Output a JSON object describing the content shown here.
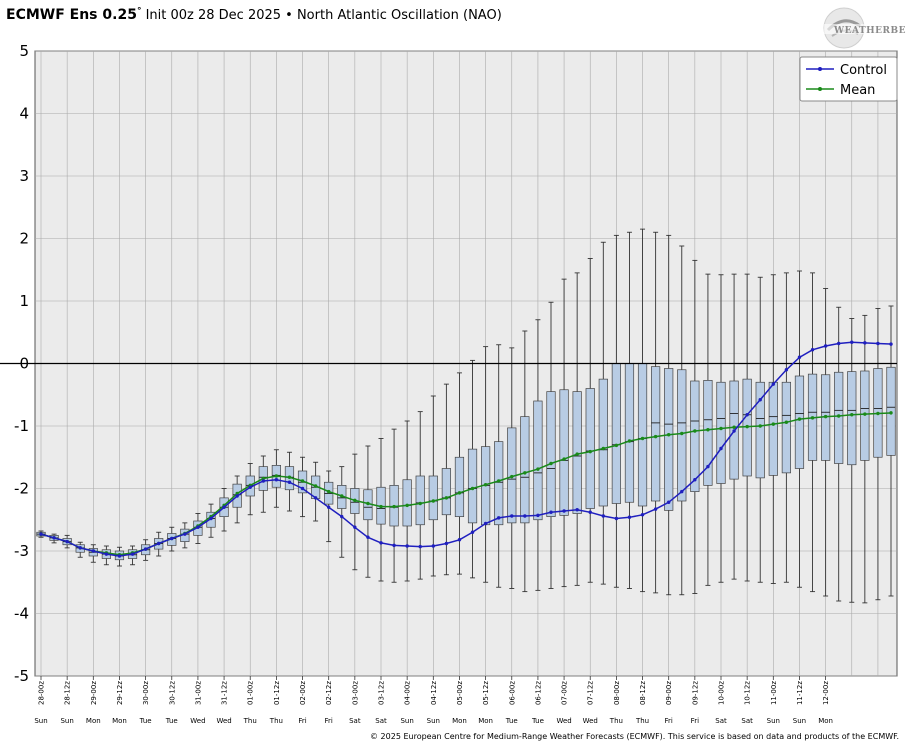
{
  "header": {
    "title_bold": "ECMWF Ens 0.25",
    "degree": "°",
    "subtitle": " Init 00z 28 Dec 2025 • North Atlantic Oscillation (NAO)"
  },
  "logo": {
    "text_main": "WEATHERBELL"
  },
  "footer": {
    "text": "© 2025 European Centre for Medium-Range Weather Forecasts (ECMWF). This service is based on data and products of the ECMWF."
  },
  "legend": {
    "control": "Control",
    "mean": "Mean",
    "position": "top-right"
  },
  "colors": {
    "control": "#1f1fbf",
    "mean": "#1a8a1a",
    "box_fill": "#b8cce4",
    "plot_bg": "#ebebeb",
    "grid": "#aaaaaa"
  },
  "chart_data": {
    "type": "box",
    "ylim": [
      -5,
      5
    ],
    "yticks": [
      "5",
      "4",
      "3",
      "2",
      "1",
      "0",
      "-1",
      "-2",
      "-3",
      "-4",
      "-5"
    ],
    "grid": true,
    "x_interval_hours": 6,
    "x_tick_labels": [
      "28-00z",
      "28-12z",
      "29-00z",
      "29-12z",
      "30-00z",
      "30-12z",
      "31-00z",
      "31-12z",
      "01-00z",
      "01-12z",
      "02-00z",
      "02-12z",
      "03-00z",
      "03-12z",
      "04-00z",
      "04-12z",
      "05-00z",
      "05-12z",
      "06-00z",
      "06-12z",
      "07-00z",
      "07-12z",
      "08-00z",
      "08-12z",
      "09-00z",
      "09-12z",
      "10-00z",
      "10-12z",
      "11-00z",
      "11-12z",
      "12-00z"
    ],
    "x_day_labels": [
      "Sun",
      "Sun",
      "Mon",
      "Mon",
      "Tue",
      "Tue",
      "Wed",
      "Wed",
      "Thu",
      "Thu",
      "Fri",
      "Fri",
      "Sat",
      "Sat",
      "Sun",
      "Sun",
      "Mon",
      "Mon",
      "Tue",
      "Tue",
      "Wed",
      "Wed",
      "Thu",
      "Thu",
      "Fri",
      "Fri",
      "Sat",
      "Sat",
      "Sun",
      "Sun",
      "Mon"
    ],
    "series": [
      {
        "name": "Control",
        "values": [
          -2.73,
          -2.79,
          -2.85,
          -2.95,
          -3.0,
          -3.05,
          -3.08,
          -3.05,
          -2.97,
          -2.88,
          -2.8,
          -2.73,
          -2.62,
          -2.48,
          -2.3,
          -2.12,
          -1.98,
          -1.88,
          -1.86,
          -1.9,
          -2.0,
          -2.15,
          -2.3,
          -2.45,
          -2.62,
          -2.78,
          -2.87,
          -2.91,
          -2.92,
          -2.93,
          -2.92,
          -2.88,
          -2.82,
          -2.7,
          -2.56,
          -2.47,
          -2.44,
          -2.44,
          -2.43,
          -2.38,
          -2.36,
          -2.34,
          -2.38,
          -2.44,
          -2.48,
          -2.46,
          -2.42,
          -2.33,
          -2.22,
          -2.05,
          -1.86,
          -1.65,
          -1.36,
          -1.08,
          -0.82,
          -0.58,
          -0.33,
          -0.1,
          0.1,
          0.22,
          0.28,
          0.32,
          0.34,
          0.33,
          0.32,
          0.31
        ]
      },
      {
        "name": "Mean",
        "values": [
          -2.73,
          -2.79,
          -2.85,
          -2.95,
          -3.0,
          -3.03,
          -3.06,
          -3.03,
          -2.97,
          -2.88,
          -2.8,
          -2.72,
          -2.6,
          -2.45,
          -2.27,
          -2.08,
          -1.95,
          -1.84,
          -1.8,
          -1.82,
          -1.88,
          -1.96,
          -2.05,
          -2.12,
          -2.19,
          -2.24,
          -2.29,
          -2.29,
          -2.27,
          -2.24,
          -2.2,
          -2.15,
          -2.07,
          -2.0,
          -1.94,
          -1.88,
          -1.81,
          -1.75,
          -1.69,
          -1.6,
          -1.53,
          -1.45,
          -1.41,
          -1.36,
          -1.31,
          -1.24,
          -1.2,
          -1.17,
          -1.14,
          -1.12,
          -1.08,
          -1.06,
          -1.04,
          -1.02,
          -1.01,
          -1.0,
          -0.97,
          -0.94,
          -0.89,
          -0.87,
          -0.85,
          -0.84,
          -0.82,
          -0.81,
          -0.8,
          -0.79
        ]
      }
    ],
    "box_q1": [
      -2.76,
      -2.83,
      -2.9,
      -3.02,
      -3.08,
      -3.12,
      -3.14,
      -3.12,
      -3.06,
      -2.97,
      -2.91,
      -2.85,
      -2.75,
      -2.62,
      -2.45,
      -2.3,
      -2.12,
      -2.03,
      -1.98,
      -2.02,
      -2.07,
      -2.16,
      -2.25,
      -2.32,
      -2.4,
      -2.5,
      -2.57,
      -2.6,
      -2.6,
      -2.58,
      -2.5,
      -2.42,
      -2.45,
      -2.55,
      -2.58,
      -2.58,
      -2.55,
      -2.55,
      -2.5,
      -2.45,
      -2.43,
      -2.4,
      -2.32,
      -2.28,
      -2.24,
      -2.22,
      -2.28,
      -2.2,
      -2.35,
      -2.2,
      -2.05,
      -1.95,
      -1.92,
      -1.85,
      -1.8,
      -1.83,
      -1.79,
      -1.75,
      -1.68,
      -1.55,
      -1.55,
      -1.6,
      -1.62,
      -1.55,
      -1.5,
      -1.47
    ],
    "box_q3": [
      -2.7,
      -2.75,
      -2.8,
      -2.9,
      -2.96,
      -2.98,
      -3.0,
      -2.98,
      -2.9,
      -2.8,
      -2.72,
      -2.65,
      -2.52,
      -2.38,
      -2.15,
      -1.93,
      -1.8,
      -1.65,
      -1.63,
      -1.65,
      -1.72,
      -1.8,
      -1.9,
      -1.95,
      -2.0,
      -2.02,
      -1.98,
      -1.95,
      -1.86,
      -1.8,
      -1.8,
      -1.68,
      -1.5,
      -1.37,
      -1.33,
      -1.25,
      -1.03,
      -0.85,
      -0.6,
      -0.45,
      -0.42,
      -0.45,
      -0.4,
      -0.25,
      0.0,
      0.0,
      0.0,
      -0.05,
      -0.08,
      -0.1,
      -0.28,
      -0.27,
      -0.3,
      -0.28,
      -0.25,
      -0.3,
      -0.3,
      -0.3,
      -0.2,
      -0.17,
      -0.18,
      -0.14,
      -0.13,
      -0.12,
      -0.08,
      -0.06
    ],
    "box_median": [
      -2.73,
      -2.79,
      -2.85,
      -2.95,
      -3.02,
      -3.05,
      -3.08,
      -3.06,
      -2.98,
      -2.88,
      -2.8,
      -2.73,
      -2.62,
      -2.48,
      -2.3,
      -2.1,
      -1.95,
      -1.82,
      -1.79,
      -1.82,
      -1.9,
      -1.98,
      -2.08,
      -2.15,
      -2.22,
      -2.3,
      -2.32,
      -2.3,
      -2.27,
      -2.23,
      -2.2,
      -2.15,
      -2.07,
      -2.0,
      -1.95,
      -1.9,
      -1.85,
      -1.82,
      -1.75,
      -1.68,
      -1.55,
      -1.48,
      -1.4,
      -1.38,
      -1.3,
      -1.25,
      -1.2,
      -0.95,
      -0.97,
      -0.95,
      -0.92,
      -0.9,
      -0.88,
      -0.8,
      -0.82,
      -0.88,
      -0.85,
      -0.83,
      -0.8,
      -0.78,
      -0.78,
      -0.75,
      -0.75,
      -0.72,
      -0.72,
      -0.7
    ],
    "box_min": [
      -2.78,
      -2.87,
      -2.95,
      -3.1,
      -3.18,
      -3.22,
      -3.24,
      -3.22,
      -3.15,
      -3.08,
      -3.0,
      -2.95,
      -2.88,
      -2.78,
      -2.68,
      -2.55,
      -2.42,
      -2.38,
      -2.3,
      -2.36,
      -2.45,
      -2.52,
      -2.85,
      -3.1,
      -3.3,
      -3.42,
      -3.48,
      -3.5,
      -3.48,
      -3.45,
      -3.4,
      -3.38,
      -3.37,
      -3.43,
      -3.5,
      -3.58,
      -3.6,
      -3.65,
      -3.63,
      -3.6,
      -3.57,
      -3.55,
      -3.5,
      -3.53,
      -3.58,
      -3.6,
      -3.65,
      -3.67,
      -3.7,
      -3.7,
      -3.68,
      -3.55,
      -3.5,
      -3.45,
      -3.48,
      -3.5,
      -3.52,
      -3.5,
      -3.58,
      -3.65,
      -3.72,
      -3.8,
      -3.82,
      -3.83,
      -3.78,
      -3.72
    ],
    "box_max": [
      -2.68,
      -2.73,
      -2.75,
      -2.86,
      -2.9,
      -2.92,
      -2.94,
      -2.92,
      -2.82,
      -2.7,
      -2.62,
      -2.55,
      -2.4,
      -2.25,
      -2.0,
      -1.8,
      -1.6,
      -1.48,
      -1.38,
      -1.42,
      -1.5,
      -1.58,
      -1.72,
      -1.65,
      -1.45,
      -1.32,
      -1.2,
      -1.05,
      -0.92,
      -0.77,
      -0.52,
      -0.33,
      -0.15,
      0.05,
      0.27,
      0.3,
      0.25,
      0.52,
      0.7,
      0.98,
      1.35,
      1.45,
      1.68,
      1.94,
      2.05,
      2.1,
      2.15,
      2.1,
      2.05,
      1.88,
      1.65,
      1.43,
      1.42,
      1.43,
      1.43,
      1.38,
      1.42,
      1.45,
      1.48,
      1.45,
      1.2,
      0.9,
      0.72,
      0.77,
      0.88,
      0.92
    ]
  }
}
